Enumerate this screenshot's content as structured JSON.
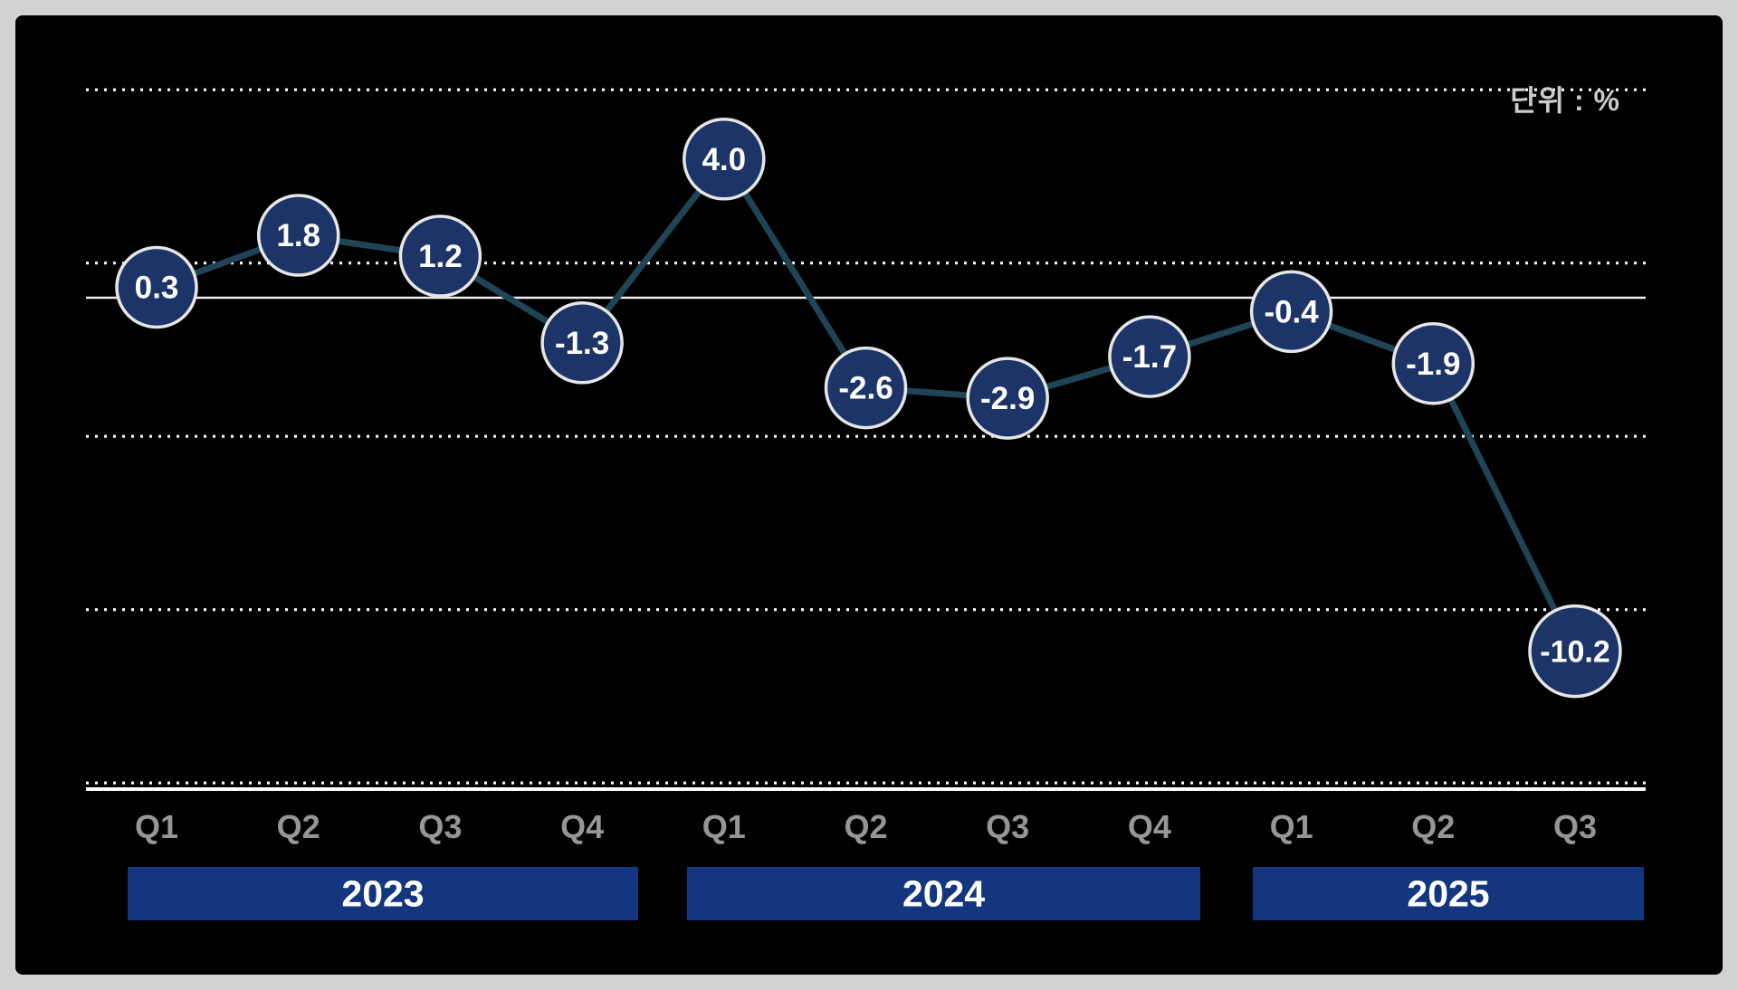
{
  "chart_data": {
    "type": "line",
    "unit_label": "단위 : %",
    "unit": "%",
    "categories": [
      "Q1",
      "Q2",
      "Q3",
      "Q4",
      "Q1",
      "Q2",
      "Q3",
      "Q4",
      "Q1",
      "Q2",
      "Q3"
    ],
    "values": [
      0.3,
      1.8,
      1.2,
      -1.3,
      4.0,
      -2.6,
      -2.9,
      -1.7,
      -0.4,
      -1.9,
      -10.2
    ],
    "value_labels": [
      "0.3",
      "1.8",
      "1.2",
      "-1.3",
      "4.0",
      "-2.6",
      "-2.9",
      "-1.7",
      "-0.4",
      "-1.9",
      "-10.2"
    ],
    "year_groups": [
      {
        "label": "2023",
        "quarter_count": 4
      },
      {
        "label": "2024",
        "quarter_count": 4
      },
      {
        "label": "2025",
        "quarter_count": 3
      }
    ],
    "ylim": [
      -14.5,
      7.6
    ],
    "gridline_values": [
      6,
      1,
      -4,
      -9,
      -14
    ],
    "zero_line": 0,
    "grid": "dotted-horizontal",
    "legend": "none",
    "title": ""
  },
  "colors": {
    "page_background": "#d2d2d2",
    "chart_background": "#000000",
    "line": "#1f4456",
    "point_fill": "#1c3467",
    "point_stroke": "#e6e6e6",
    "value_text": "#ffffff",
    "gridline": "#ffffff",
    "zero_line": "#eeeeee",
    "axis_line": "#ffffff",
    "quarter_label": "#969696",
    "year_bar": "#14367e",
    "year_text": "#ffffff",
    "unit_text": "#cccccc"
  }
}
